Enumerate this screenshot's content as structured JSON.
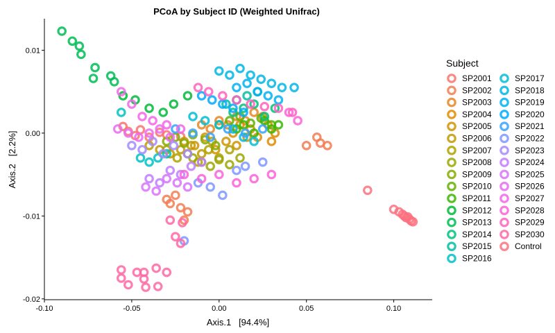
{
  "chart_data": {
    "type": "scatter",
    "title": "PCoA by Subject ID (Weighted Unifrac)",
    "xlabel": "Axis.1   [94.4%]",
    "ylabel": "Axis.2   [2.2%]",
    "xlim": [
      -0.1,
      0.122
    ],
    "ylim": [
      -0.0201,
      0.0138
    ],
    "xticks": [
      -0.1,
      -0.05,
      0.0,
      0.05,
      0.1
    ],
    "xtick_labels": [
      "-0.10",
      "-0.05",
      "0.00",
      "0.05",
      "0.10"
    ],
    "yticks": [
      -0.02,
      -0.01,
      0.0,
      0.01
    ],
    "ytick_labels": [
      "-0.02",
      "-0.01",
      "0.00",
      "0.01"
    ],
    "grid": false,
    "legend": {
      "title": "Subject",
      "placement": "right",
      "entries": [
        "SP2001",
        "SP2002",
        "SP2003",
        "SP2004",
        "SP2005",
        "SP2006",
        "SP2007",
        "SP2008",
        "SP2009",
        "SP2010",
        "SP2011",
        "SP2012",
        "SP2013",
        "SP2014",
        "SP2015",
        "SP2016",
        "SP2017",
        "SP2018",
        "SP2019",
        "SP2020",
        "SP2021",
        "SP2022",
        "SP2023",
        "SP2024",
        "SP2025",
        "SP2026",
        "SP2027",
        "SP2028",
        "SP2029",
        "SP2030",
        "Control"
      ],
      "colors": [
        "#F8766D",
        "#F27D52",
        "#E88526",
        "#DE8C00",
        "#D09400",
        "#C09B00",
        "#AEA200",
        "#9AA800",
        "#82AD00",
        "#63B200",
        "#39B600",
        "#00B938",
        "#00BC56",
        "#00BF7D",
        "#00C0A2",
        "#00C1C4",
        "#00BDD6",
        "#00B6E5",
        "#00B0F6",
        "#00A8FF",
        "#35A2FF",
        "#7F97FF",
        "#A58AFF",
        "#C27DFF",
        "#D973FC",
        "#E76BF3",
        "#F265E7",
        "#FB61D7",
        "#FF62BC",
        "#FF67A4",
        "#FC717F"
      ]
    },
    "series": [
      {
        "name": "SP2001",
        "x": [
          -0.055,
          -0.052,
          -0.048,
          -0.045,
          -0.04,
          -0.034,
          -0.03,
          -0.022
        ],
        "y": [
          0.0008,
          0.0002,
          -0.0003,
          0.0004,
          -0.0005,
          0.0001,
          -0.0002,
          -0.0004
        ]
      },
      {
        "name": "SP2002",
        "x": [
          -0.03,
          -0.025,
          -0.028,
          -0.022,
          -0.018,
          -0.02,
          0.05,
          0.056,
          0.058,
          0.062
        ],
        "y": [
          -0.008,
          -0.0075,
          -0.0085,
          -0.009,
          -0.0095,
          -0.0105,
          -0.0015,
          -0.0005,
          -0.0012,
          -0.0015
        ]
      },
      {
        "name": "SP2003",
        "x": [
          -0.01,
          -0.005,
          0.0,
          0.005,
          0.01,
          0.015,
          0.02,
          0.025
        ],
        "y": [
          0.001,
          0.0005,
          0.0015,
          0.001,
          0.002,
          0.0015,
          0.0025,
          0.002
        ]
      },
      {
        "name": "SP2004",
        "x": [
          0.008,
          0.012,
          0.018,
          0.022,
          0.028,
          0.032,
          0.03
        ],
        "y": [
          0.0,
          0.001,
          0.0005,
          -0.0005,
          0.001,
          0.0,
          -0.001
        ]
      },
      {
        "name": "SP2005",
        "x": [
          -0.02,
          -0.014,
          -0.008,
          -0.002,
          0.004,
          0.01,
          0.016
        ],
        "y": [
          -0.001,
          -0.0015,
          -0.0005,
          -0.002,
          -0.001,
          -0.0015,
          -0.0005
        ]
      },
      {
        "name": "SP2006",
        "x": [
          -0.04,
          -0.034,
          -0.028,
          -0.022,
          -0.016,
          -0.01,
          -0.004
        ],
        "y": [
          -0.0015,
          -0.002,
          -0.0025,
          -0.002,
          -0.0015,
          -0.0025,
          -0.001
        ]
      },
      {
        "name": "SP2007",
        "x": [
          -0.03,
          -0.024,
          -0.018,
          -0.012,
          -0.006,
          0.0,
          0.006
        ],
        "y": [
          -0.002,
          -0.003,
          -0.0025,
          -0.0035,
          -0.002,
          -0.003,
          -0.002
        ]
      },
      {
        "name": "SP2008",
        "x": [
          -0.015,
          -0.01,
          -0.005,
          0.0,
          0.006,
          0.012
        ],
        "y": [
          -0.003,
          -0.0035,
          -0.004,
          -0.0032,
          -0.0038,
          -0.003
        ]
      },
      {
        "name": "SP2009",
        "x": [
          -0.03,
          -0.025,
          -0.02,
          -0.015,
          -0.008,
          -0.002
        ],
        "y": [
          -0.001,
          -0.0005,
          -0.0012,
          -0.0002,
          -0.0008,
          -0.0015
        ]
      },
      {
        "name": "SP2010",
        "x": [
          0.0,
          0.006,
          0.012,
          0.018,
          0.024,
          0.03
        ],
        "y": [
          0.001,
          0.0015,
          0.002,
          0.0012,
          0.0018,
          0.001
        ]
      },
      {
        "name": "SP2011",
        "x": [
          0.01,
          0.014,
          0.02,
          0.026,
          0.03,
          0.034
        ],
        "y": [
          0.0005,
          0.001,
          0.0,
          0.0015,
          0.0005,
          0.001
        ]
      },
      {
        "name": "SP2012",
        "x": [
          -0.055,
          -0.048,
          -0.04,
          -0.032,
          -0.026,
          -0.018
        ],
        "y": [
          0.0045,
          0.004,
          0.003,
          0.0025,
          0.0035,
          0.0045
        ]
      },
      {
        "name": "SP2013",
        "x": [
          -0.09,
          -0.084,
          -0.08,
          -0.079,
          -0.071,
          -0.072,
          -0.062,
          -0.06
        ],
        "y": [
          0.0123,
          0.0111,
          0.0105,
          0.0095,
          0.0079,
          0.0066,
          0.0069,
          0.0062
        ]
      },
      {
        "name": "SP2014",
        "x": [
          0.008,
          0.014,
          0.02,
          0.026,
          0.032
        ],
        "y": [
          0.0025,
          0.003,
          0.0035,
          0.002,
          0.003
        ]
      },
      {
        "name": "SP2015",
        "x": [
          0.004,
          0.01,
          0.016,
          0.022
        ],
        "y": [
          0.0035,
          0.004,
          0.0045,
          0.005
        ]
      },
      {
        "name": "SP2016",
        "x": [
          -0.056,
          -0.045,
          -0.04,
          -0.035,
          -0.03
        ],
        "y": [
          0.0025,
          -0.003,
          -0.0035,
          -0.003,
          -0.0025
        ]
      },
      {
        "name": "SP2017",
        "x": [
          -0.015,
          -0.008,
          0.0,
          0.008,
          0.014,
          0.02
        ],
        "y": [
          0.002,
          0.0015,
          0.001,
          0.0005,
          -0.0005,
          -0.001
        ]
      },
      {
        "name": "SP2018",
        "x": [
          0.0,
          0.006,
          0.012,
          0.018,
          0.024,
          0.03,
          0.036,
          0.043
        ],
        "y": [
          0.0075,
          0.007,
          0.0078,
          0.007,
          0.0065,
          0.006,
          0.0055,
          0.0055
        ]
      },
      {
        "name": "SP2019",
        "x": [
          0.01,
          0.016,
          0.022,
          0.028,
          0.034
        ],
        "y": [
          0.0055,
          0.006,
          0.005,
          0.0045,
          0.004
        ]
      },
      {
        "name": "SP2020",
        "x": [
          -0.01,
          -0.004,
          0.002,
          0.008,
          0.014
        ],
        "y": [
          0.0045,
          0.004,
          0.0035,
          0.003,
          0.0025
        ]
      },
      {
        "name": "SP2021",
        "x": [
          -0.025,
          -0.015,
          -0.005,
          0.005,
          0.015,
          0.025
        ],
        "y": [
          0.0005,
          0.0,
          -0.0005,
          0.0005,
          0.0,
          0.0005
        ]
      },
      {
        "name": "SP2022",
        "x": [
          -0.02,
          -0.012,
          -0.005,
          0.002,
          0.01,
          0.015,
          0.025
        ],
        "y": [
          -0.013,
          -0.006,
          -0.0065,
          -0.0075,
          -0.0045,
          -0.004,
          -0.0035
        ]
      },
      {
        "name": "SP2023",
        "x": [
          -0.05,
          -0.044,
          -0.038,
          -0.032,
          -0.026,
          -0.018
        ],
        "y": [
          -0.0015,
          -0.002,
          -0.001,
          -0.0025,
          -0.0015,
          -0.0025
        ]
      },
      {
        "name": "SP2024",
        "x": [
          -0.04,
          -0.034,
          -0.028,
          -0.022,
          -0.016,
          -0.01
        ],
        "y": [
          -0.0055,
          -0.006,
          -0.0045,
          -0.005,
          -0.004,
          -0.0035
        ]
      },
      {
        "name": "SP2025",
        "x": [
          -0.042,
          -0.036,
          -0.03,
          -0.024,
          -0.018
        ],
        "y": [
          -0.0065,
          -0.007,
          -0.0055,
          -0.006,
          -0.0065
        ]
      },
      {
        "name": "SP2026",
        "x": [
          -0.058,
          -0.052,
          -0.046,
          -0.04,
          -0.034,
          -0.028
        ],
        "y": [
          0.0005,
          0.0,
          -0.0005,
          0.0,
          0.0005,
          -0.0005
        ]
      },
      {
        "name": "SP2027",
        "x": [
          -0.056,
          -0.05,
          -0.044,
          -0.038,
          -0.03,
          -0.022
        ],
        "y": [
          0.005,
          0.0035,
          0.002,
          0.0015,
          0.001,
          0.0005
        ]
      },
      {
        "name": "SP2028",
        "x": [
          -0.02,
          -0.01,
          0.0,
          0.01,
          0.02,
          0.03,
          0.04,
          0.045
        ],
        "y": [
          -0.005,
          -0.0055,
          -0.005,
          -0.006,
          -0.0055,
          -0.005,
          0.0025,
          0.0015
        ]
      },
      {
        "name": "SP2029",
        "x": [
          -0.012,
          -0.006,
          0.002,
          0.01,
          0.018,
          0.026,
          0.034,
          0.042
        ],
        "y": [
          0.0055,
          0.005,
          0.0045,
          0.004,
          0.0035,
          0.0032,
          0.003,
          0.0025
        ]
      },
      {
        "name": "SP2030",
        "x": [
          -0.056,
          -0.056,
          -0.052,
          -0.047,
          -0.043,
          -0.043,
          -0.042,
          -0.036,
          -0.035,
          -0.03,
          -0.025,
          -0.022,
          -0.028,
          -0.021
        ],
        "y": [
          -0.0165,
          -0.0175,
          -0.0183,
          -0.0168,
          -0.0168,
          -0.0176,
          -0.0186,
          -0.0163,
          -0.0185,
          -0.0168,
          -0.0125,
          -0.0133,
          -0.0105,
          -0.0108
        ]
      },
      {
        "name": "Control",
        "x": [
          0.085,
          0.1,
          0.103,
          0.105,
          0.106,
          0.107,
          0.108,
          0.109,
          0.11,
          0.111
        ],
        "y": [
          -0.0069,
          -0.0092,
          -0.0095,
          -0.0098,
          -0.01,
          -0.0102,
          -0.0101,
          -0.0104,
          -0.0106,
          -0.0107
        ]
      }
    ]
  }
}
